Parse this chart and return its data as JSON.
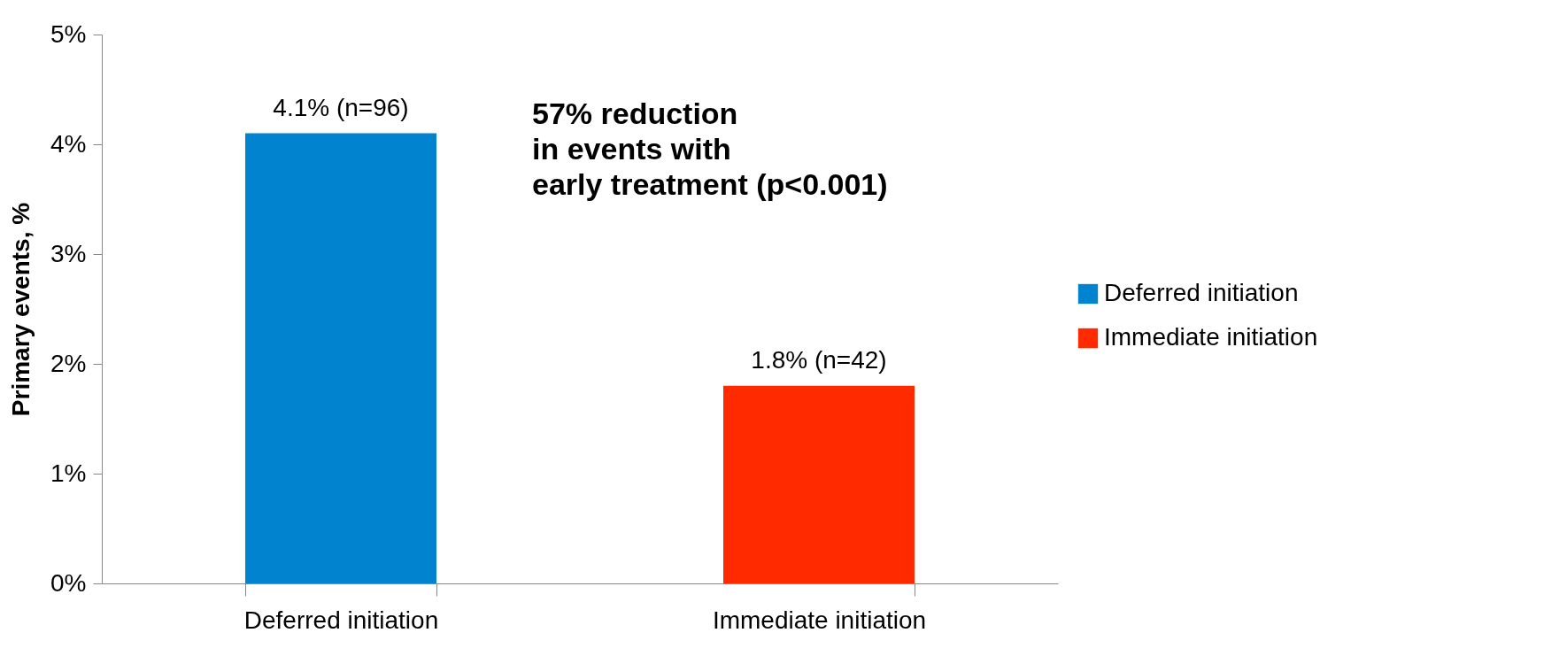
{
  "chart_data": {
    "type": "bar",
    "categories": [
      "Deferred initiation",
      "Immediate initiation"
    ],
    "series": [
      {
        "name": "Deferred initiation",
        "color": "#0283d0",
        "values": [
          4.1,
          null
        ],
        "value_labels": [
          "4.1% (n=96)",
          null
        ]
      },
      {
        "name": "Immediate initiation",
        "color": "#ff2a00",
        "values": [
          null,
          1.8
        ],
        "value_labels": [
          null,
          "1.8% (n=42)"
        ]
      }
    ],
    "ylabel": "Primary events, %",
    "ylim": [
      0,
      5
    ],
    "yticks": [
      {
        "value": 0,
        "label": "0%"
      },
      {
        "value": 1,
        "label": "1%"
      },
      {
        "value": 2,
        "label": "2%"
      },
      {
        "value": 3,
        "label": "3%"
      },
      {
        "value": 4,
        "label": "4%"
      },
      {
        "value": 5,
        "label": "5%"
      }
    ],
    "annotations": [
      "57% reduction\n in events with\nearly treatment (p<0.001)"
    ],
    "grid": false,
    "legend": "right"
  }
}
